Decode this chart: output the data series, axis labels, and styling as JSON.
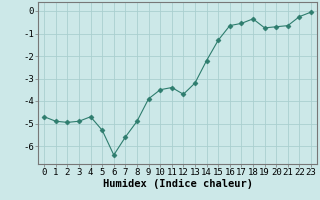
{
  "x": [
    0,
    1,
    2,
    3,
    4,
    5,
    6,
    7,
    8,
    9,
    10,
    11,
    12,
    13,
    14,
    15,
    16,
    17,
    18,
    19,
    20,
    21,
    22,
    23
  ],
  "y": [
    -4.7,
    -4.9,
    -4.95,
    -4.9,
    -4.7,
    -5.3,
    -6.4,
    -5.6,
    -4.9,
    -3.9,
    -3.5,
    -3.4,
    -3.7,
    -3.2,
    -2.2,
    -1.3,
    -0.65,
    -0.55,
    -0.35,
    -0.75,
    -0.7,
    -0.65,
    -0.25,
    -0.05
  ],
  "line_color": "#2e7d6e",
  "marker": "D",
  "marker_size": 2.5,
  "bg_color": "#cce8e8",
  "grid_color": "#aacfcf",
  "xlabel": "Humidex (Indice chaleur)",
  "xlim": [
    -0.5,
    23.5
  ],
  "ylim": [
    -6.8,
    0.4
  ],
  "yticks": [
    0,
    -1,
    -2,
    -3,
    -4,
    -5,
    -6
  ],
  "xtick_labels": [
    "0",
    "1",
    "2",
    "3",
    "4",
    "5",
    "6",
    "7",
    "8",
    "9",
    "10",
    "11",
    "12",
    "13",
    "14",
    "15",
    "16",
    "17",
    "18",
    "19",
    "20",
    "21",
    "22",
    "23"
  ],
  "xlabel_fontsize": 7.5,
  "tick_fontsize": 6.5
}
